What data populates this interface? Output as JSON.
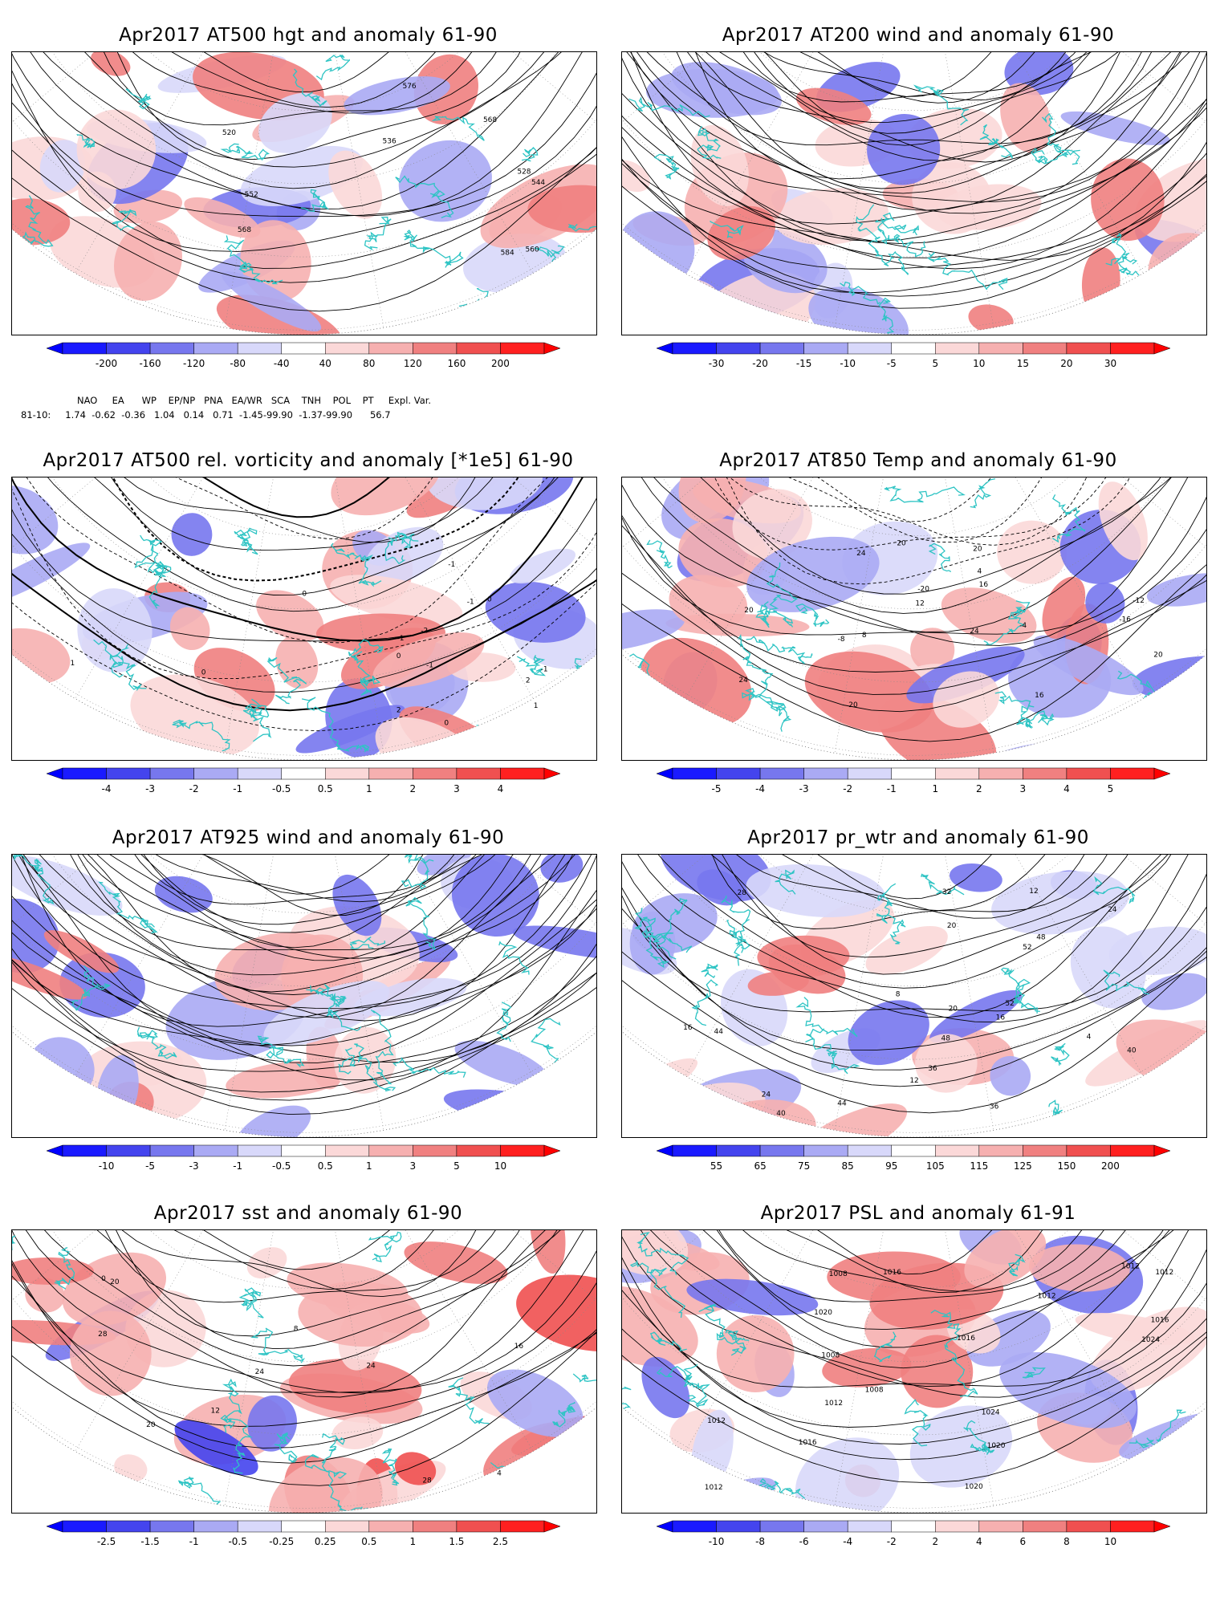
{
  "panels": [
    {
      "id": "p1",
      "title": "Apr2017 AT500 hgt and anomaly 61-90",
      "ticks": [
        "-200",
        "-160",
        "-120",
        "-80",
        "-40",
        "40",
        "80",
        "120",
        "160",
        "200"
      ],
      "contour_labels": [
        "520",
        "528",
        "536",
        "544",
        "552",
        "560",
        "568",
        "576",
        "584",
        "568"
      ]
    },
    {
      "id": "p2",
      "title": "Apr2017 AT200 wind and anomaly 61-90",
      "ticks": [
        "-30",
        "-20",
        "-15",
        "-10",
        "-5",
        "5",
        "10",
        "15",
        "20",
        "30"
      ],
      "contour_labels": []
    },
    {
      "id": "p3",
      "title": "Apr2017 AT500 rel. vorticity and anomaly [*1e5] 61-90",
      "ticks": [
        "-4",
        "-3",
        "-2",
        "-1",
        "-0.5",
        "0.5",
        "1",
        "2",
        "3",
        "4"
      ],
      "contour_labels": [
        "0",
        "-1",
        "-1",
        "2",
        "2",
        "-1",
        "0",
        "0",
        "1",
        "0",
        "-2",
        "-1",
        "1",
        "-1",
        "0"
      ]
    },
    {
      "id": "p4",
      "title": "Apr2017 AT850 Temp and anomaly 61-90",
      "ticks": [
        "-5",
        "-4",
        "-3",
        "-2",
        "-1",
        "1",
        "2",
        "3",
        "4",
        "5"
      ],
      "contour_labels": [
        "20",
        "-20",
        "-16",
        "-12",
        "-8",
        "-4",
        "4",
        "8",
        "12",
        "16",
        "20",
        "24",
        "16",
        "20",
        "24",
        "20",
        "20",
        "24"
      ]
    },
    {
      "id": "p5",
      "title": "Apr2017 AT925 wind and anomaly 61-90",
      "ticks": [
        "-10",
        "-5",
        "-3",
        "-1",
        "-0.5",
        "0.5",
        "1",
        "3",
        "5",
        "10"
      ],
      "contour_labels": []
    },
    {
      "id": "p6",
      "title": "Apr2017 pr_wtr and anomaly 61-90",
      "ticks": [
        "55",
        "65",
        "75",
        "85",
        "95",
        "105",
        "115",
        "125",
        "150",
        "200"
      ],
      "contour_labels": [
        "52",
        "48",
        "44",
        "40",
        "36",
        "32",
        "28",
        "24",
        "20",
        "16",
        "12",
        "8",
        "4",
        "24",
        "20",
        "16",
        "12",
        "40",
        "36",
        "44",
        "48",
        "52"
      ]
    },
    {
      "id": "p7",
      "title": "Apr2017 sst and anomaly 61-90",
      "ticks": [
        "-2.5",
        "-1.5",
        "-1",
        "-0.5",
        "-0.25",
        "0.25",
        "0.5",
        "1",
        "1.5",
        "2.5"
      ],
      "contour_labels": [
        "24",
        "28",
        "20",
        "16",
        "12",
        "8",
        "4",
        "0",
        "20",
        "24",
        "28"
      ]
    },
    {
      "id": "p8",
      "title": "Apr2017 PSL and anomaly 61-91",
      "ticks": [
        "-10",
        "-8",
        "-6",
        "-4",
        "-2",
        "2",
        "4",
        "6",
        "8",
        "10"
      ],
      "contour_labels": [
        "1012",
        "1020",
        "1016",
        "1012",
        "1024",
        "1008",
        "1020",
        "1016",
        "1024",
        "1016",
        "1012",
        "1008",
        "1012",
        "1008",
        "1012",
        "1016",
        "1012",
        "1020"
      ]
    }
  ],
  "teleconnection": {
    "header": "NAO     EA      WP    EP/NP   PNA   EA/WR   SCA    TNH    POL    PT     Expl. Var.",
    "row_label": "81-10:",
    "values": "1.74  -0.62  -0.36   1.04   0.14   0.71  -1.45-99.90  -1.37-99.90      56.7"
  },
  "colors": {
    "coast": "#2ec4c4",
    "blue_scale": [
      "#1a1aff",
      "#4444ee",
      "#7777ee",
      "#aaaaf4",
      "#d8d8fa"
    ],
    "red_scale": [
      "#fbd8d8",
      "#f6b0b0",
      "#f08080",
      "#f05050",
      "#ff2020"
    ]
  }
}
